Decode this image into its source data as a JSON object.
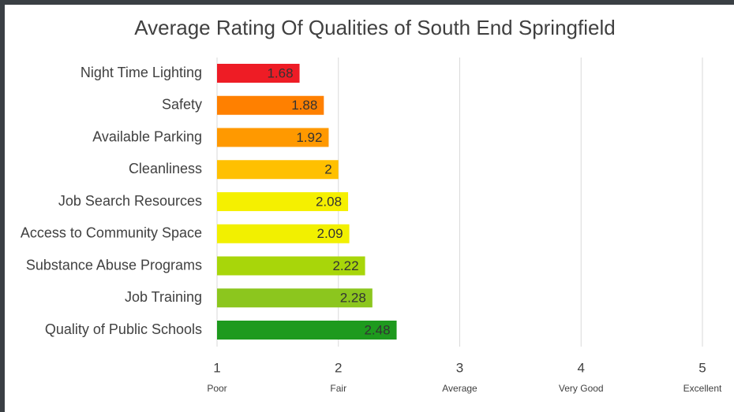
{
  "chart_data": {
    "type": "hbar",
    "title": "Average Rating Of Qualities of South End Springfield",
    "categories": [
      "Night Time Lighting",
      "Safety",
      "Available Parking",
      "Cleanliness",
      "Job Search Resources",
      "Access to Community Space",
      "Substance Abuse Programs",
      "Job Training",
      "Quality of Public Schools"
    ],
    "values": [
      1.68,
      1.88,
      1.92,
      2,
      2.08,
      2.09,
      2.22,
      2.28,
      2.48
    ],
    "colors": [
      "#ee1c25",
      "#ff8000",
      "#ff9900",
      "#ffc000",
      "#f5f000",
      "#f2f000",
      "#a8d60a",
      "#8cc61e",
      "#1e9a1e"
    ],
    "xlim": [
      1,
      5
    ],
    "xticks": [
      1,
      2,
      3,
      4,
      5
    ],
    "xtick_sublabels": [
      "Poor",
      "Fair",
      "Average",
      "Very Good",
      "Excellent"
    ],
    "grid": true
  }
}
